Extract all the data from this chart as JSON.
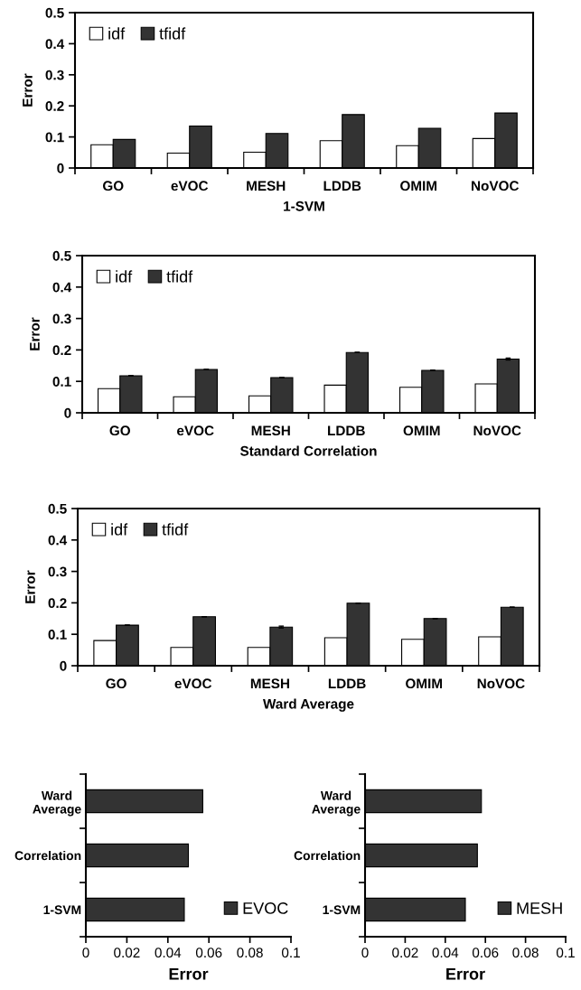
{
  "chart_data": [
    {
      "type": "bar",
      "xlabel": "1-SVM",
      "ylabel": "Error",
      "categories": [
        "GO",
        "eVOC",
        "MESH",
        "LDDB",
        "OMIM",
        "NoVOC"
      ],
      "ylim": [
        0,
        0.5
      ],
      "yticks": [
        0,
        0.1,
        0.2,
        0.3,
        0.4,
        0.5
      ],
      "legend": "top left",
      "grid": false,
      "series": [
        {
          "name": "idf",
          "color": "#ffffff",
          "values": [
            0.075,
            0.048,
            0.051,
            0.088,
            0.072,
            0.095
          ]
        },
        {
          "name": "tfidf",
          "color": "#333333",
          "values": [
            0.092,
            0.135,
            0.111,
            0.172,
            0.128,
            0.177
          ]
        }
      ]
    },
    {
      "type": "bar",
      "xlabel": "Standard Correlation",
      "ylabel": "Error",
      "categories": [
        "GO",
        "eVOC",
        "MESH",
        "LDDB",
        "OMIM",
        "NoVOC"
      ],
      "ylim": [
        0,
        0.5
      ],
      "yticks": [
        0,
        0.1,
        0.2,
        0.3,
        0.4,
        0.5
      ],
      "legend": "top left",
      "grid": false,
      "series": [
        {
          "name": "idf",
          "color": "#ffffff",
          "values": [
            0.077,
            0.051,
            0.054,
            0.088,
            0.081,
            0.092
          ]
        },
        {
          "name": "tfidf",
          "color": "#333333",
          "values": [
            0.118,
            0.138,
            0.112,
            0.192,
            0.135,
            0.171
          ],
          "errors": [
            null,
            null,
            null,
            null,
            null,
            0.003
          ]
        }
      ]
    },
    {
      "type": "bar",
      "xlabel": "Ward Average",
      "ylabel": "Error",
      "categories": [
        "GO",
        "eVOC",
        "MESH",
        "LDDB",
        "OMIM",
        "NoVOC"
      ],
      "ylim": [
        0,
        0.5
      ],
      "yticks": [
        0,
        0.1,
        0.2,
        0.3,
        0.4,
        0.5
      ],
      "legend": "top left",
      "grid": false,
      "series": [
        {
          "name": "idf",
          "color": "#ffffff",
          "values": [
            0.08,
            0.058,
            0.058,
            0.089,
            0.084,
            0.092
          ]
        },
        {
          "name": "tfidf",
          "color": "#333333",
          "values": [
            0.129,
            0.156,
            0.123,
            0.199,
            0.15,
            0.186
          ],
          "errors": [
            null,
            null,
            0.003,
            null,
            null,
            null
          ]
        }
      ]
    },
    {
      "type": "bar",
      "orientation": "horizontal",
      "xlabel": "Error",
      "categories": [
        "Ward\nAverage",
        "Correlation",
        "1-SVM"
      ],
      "xlim": [
        0,
        0.1
      ],
      "xticks": [
        0,
        0.02,
        0.04,
        0.06,
        0.08,
        0.1
      ],
      "legend": "bottom right",
      "grid": false,
      "series": [
        {
          "name": "EVOC",
          "color": "#333333",
          "values": [
            0.057,
            0.05,
            0.048
          ]
        }
      ]
    },
    {
      "type": "bar",
      "orientation": "horizontal",
      "xlabel": "Error",
      "categories": [
        "Ward\nAverage",
        "Correlation",
        "1-SVM"
      ],
      "xlim": [
        0,
        0.1
      ],
      "xticks": [
        0,
        0.02,
        0.04,
        0.06,
        0.08,
        0.1
      ],
      "legend": "bottom right",
      "grid": false,
      "series": [
        {
          "name": "MESH",
          "color": "#333333",
          "values": [
            0.058,
            0.056,
            0.05
          ]
        }
      ]
    }
  ]
}
